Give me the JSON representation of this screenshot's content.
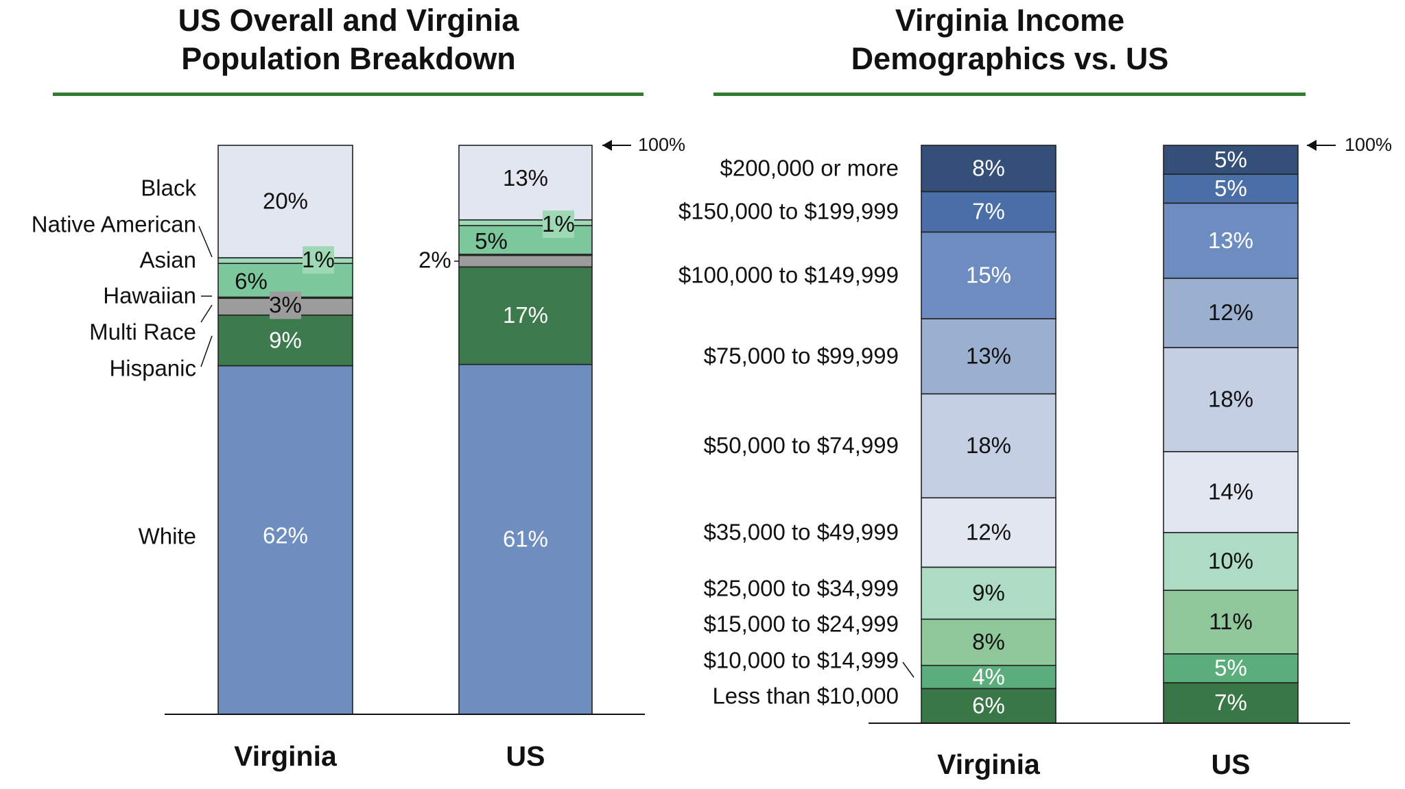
{
  "chart_data": [
    {
      "type": "bar",
      "stacked": true,
      "title": "US Overall and Virginia Population Breakdown",
      "title_lines": [
        "US Overall and Virginia",
        "Population Breakdown"
      ],
      "categories": [
        "Virginia",
        "US"
      ],
      "top_marker": "100%",
      "series": [
        {
          "name": "White",
          "values": [
            62,
            61
          ],
          "labels": [
            "62%",
            "61%"
          ],
          "color": "#6E8EBF",
          "text_color": "#ffffff"
        },
        {
          "name": "Hispanic",
          "values": [
            9,
            17
          ],
          "labels": [
            "9%",
            "17%"
          ],
          "color": "#3D7A4D",
          "text_color": "#ffffff"
        },
        {
          "name": "Multi Race",
          "values": [
            3,
            2
          ],
          "labels": [
            "3%",
            "2%"
          ],
          "color": "#9C9C9C",
          "text_color": "#111111"
        },
        {
          "name": "Hawaiian",
          "values": [
            0.2,
            0.2
          ],
          "labels": [
            "",
            ""
          ],
          "color": "#BFE3CD",
          "text_color": "#111111"
        },
        {
          "name": "Asian",
          "values": [
            6,
            5
          ],
          "labels": [
            "6%",
            "5%"
          ],
          "color": "#7CC79B",
          "text_color": "#111111"
        },
        {
          "name": "Native American",
          "values": [
            1,
            1
          ],
          "labels": [
            "1%",
            "1%"
          ],
          "color": "#9FD8B4",
          "text_color": "#111111"
        },
        {
          "name": "Black",
          "values": [
            20,
            13
          ],
          "labels": [
            "20%",
            "13%"
          ],
          "color": "#E1E6F0",
          "text_color": "#111111"
        }
      ]
    },
    {
      "type": "bar",
      "stacked": true,
      "title": "Virginia Income Demographics vs. US",
      "title_lines": [
        "Virginia Income",
        "Demographics vs. US"
      ],
      "categories": [
        "Virginia",
        "US"
      ],
      "top_marker": "100%",
      "series": [
        {
          "name": "Less than $10,000",
          "values": [
            6,
            7
          ],
          "labels": [
            "6%",
            "7%"
          ],
          "color": "#3A7747",
          "text_color": "#ffffff"
        },
        {
          "name": "$10,000 to $14,999",
          "values": [
            4,
            5
          ],
          "labels": [
            "4%",
            "5%"
          ],
          "color": "#5BAE7B",
          "text_color": "#ffffff"
        },
        {
          "name": "$15,000 to $24,999",
          "values": [
            8,
            11
          ],
          "labels": [
            "8%",
            "11%"
          ],
          "color": "#8FC79B",
          "text_color": "#111111"
        },
        {
          "name": "$25,000 to $34,999",
          "values": [
            9,
            10
          ],
          "labels": [
            "9%",
            "10%"
          ],
          "color": "#AEDBC3",
          "text_color": "#111111"
        },
        {
          "name": "$35,000 to $49,999",
          "values": [
            12,
            14
          ],
          "labels": [
            "12%",
            "14%"
          ],
          "color": "#E1E6F0",
          "text_color": "#111111"
        },
        {
          "name": "$50,000 to $74,999",
          "values": [
            18,
            18
          ],
          "labels": [
            "18%",
            "18%"
          ],
          "color": "#C4CFE3",
          "text_color": "#111111"
        },
        {
          "name": "$75,000 to $99,999",
          "values": [
            13,
            12
          ],
          "labels": [
            "13%",
            "12%"
          ],
          "color": "#9BAFCF",
          "text_color": "#111111"
        },
        {
          "name": "$100,000 to $149,999",
          "values": [
            15,
            13
          ],
          "labels": [
            "15%",
            "13%"
          ],
          "color": "#6D8DC0",
          "text_color": "#ffffff"
        },
        {
          "name": "$150,000 to $199,999",
          "values": [
            7,
            5
          ],
          "labels": [
            "7%",
            "5%"
          ],
          "color": "#4A6EA6",
          "text_color": "#ffffff"
        },
        {
          "name": "$200,000 or more",
          "values": [
            8,
            5
          ],
          "labels": [
            "8%",
            "5%"
          ],
          "color": "#344F78",
          "text_color": "#ffffff"
        }
      ]
    }
  ],
  "theme": {
    "rule_color": "#2E7D32",
    "border_color": "#222222",
    "text_color": "#111111"
  }
}
